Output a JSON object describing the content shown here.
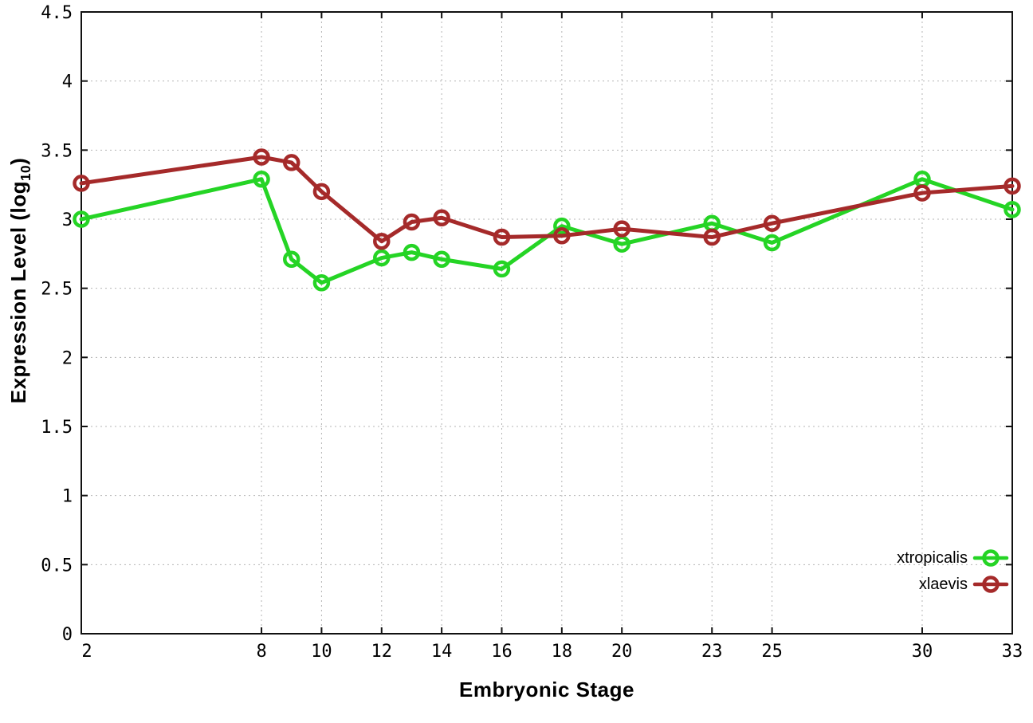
{
  "chart_data": {
    "type": "line",
    "title": "",
    "xlabel": "Embryonic Stage",
    "ylabel": "Expression Level (log10)",
    "ylabel_parts": {
      "prefix": "Expression Level (log",
      "sub": "10",
      "suffix": ")"
    },
    "x": [
      2,
      8,
      9,
      10,
      12,
      13,
      14,
      16,
      18,
      20,
      23,
      25,
      30,
      33
    ],
    "series": [
      {
        "name": "xtropicalis",
        "color": "#25d425",
        "values": [
          3.0,
          3.29,
          2.71,
          2.54,
          2.72,
          2.76,
          2.71,
          2.64,
          2.95,
          2.82,
          2.97,
          2.83,
          3.29,
          3.07
        ]
      },
      {
        "name": "xlaevis",
        "color": "#a52a2a",
        "values": [
          3.26,
          3.45,
          3.41,
          3.2,
          2.84,
          2.98,
          3.01,
          2.87,
          2.88,
          2.93,
          2.87,
          2.97,
          3.19,
          3.24
        ]
      }
    ],
    "xlim": [
      2,
      33
    ],
    "ylim": [
      0,
      4.5
    ],
    "x_ticks": [
      2,
      8,
      10,
      12,
      14,
      16,
      18,
      20,
      23,
      25,
      30,
      33
    ],
    "x_tick_labels": [
      "2",
      "8",
      "10",
      "12",
      "14",
      "16",
      "18",
      "20",
      "23",
      "25",
      "30",
      "33"
    ],
    "y_ticks": [
      0,
      0.5,
      1,
      1.5,
      2,
      2.5,
      3,
      3.5,
      4,
      4.5
    ],
    "y_tick_labels": [
      "0",
      "0.5",
      "1",
      "1.5",
      "2",
      "2.5",
      "3",
      "3.5",
      "4",
      "4.5"
    ],
    "grid": true,
    "legend_position": "bottom-right",
    "marker": "open-circle",
    "colors": {
      "grid": "#b4b4b4",
      "axis": "#111111",
      "background": "#ffffff"
    }
  }
}
